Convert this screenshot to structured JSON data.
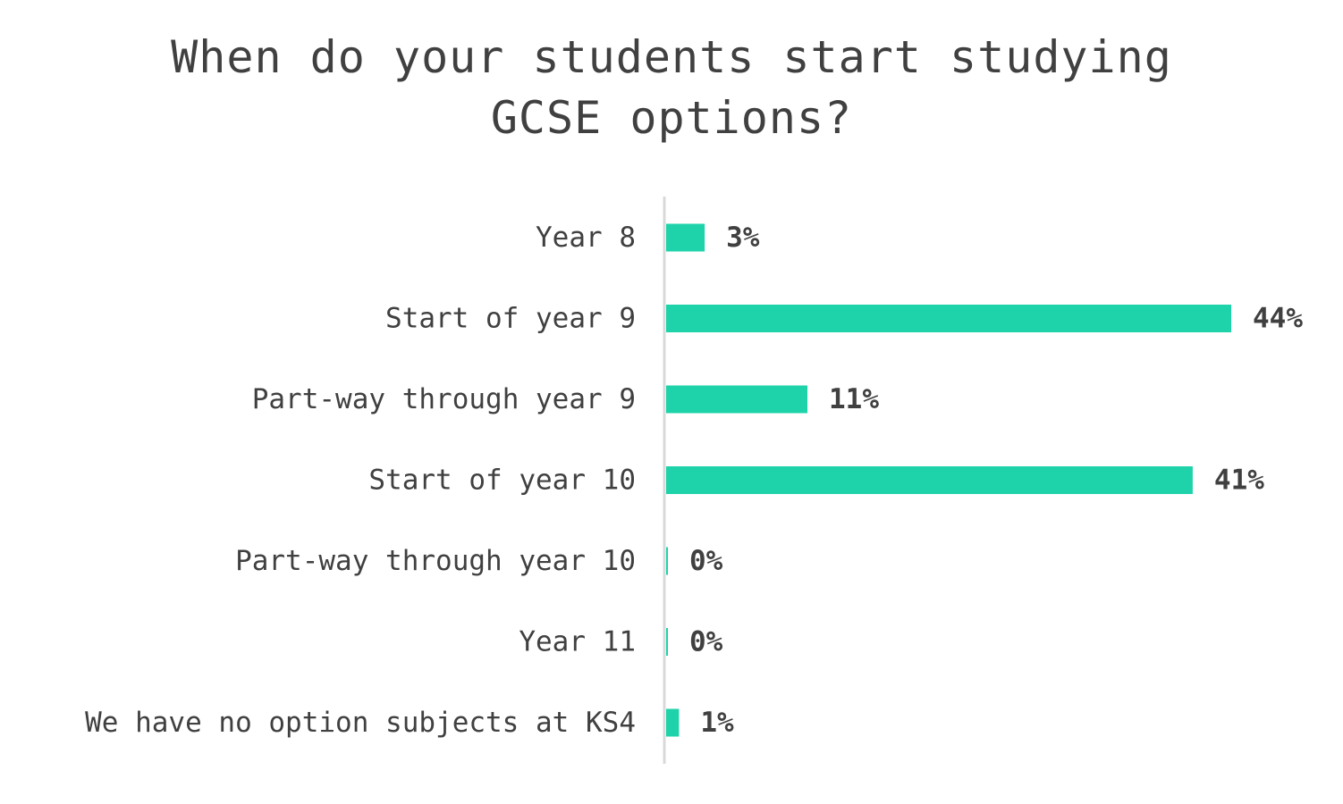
{
  "chart_data": {
    "type": "bar",
    "orientation": "horizontal",
    "title_lines": [
      "When do your students start studying",
      "GCSE options?"
    ],
    "categories": [
      "Year 8",
      "Start of year 9",
      "Part-way through year 9",
      "Start of year 10",
      "Part-way through year 10",
      "Year 11",
      "We have no option subjects at KS4"
    ],
    "values": [
      3,
      44,
      11,
      41,
      0,
      0,
      1
    ],
    "data_labels": [
      "3%",
      "44%",
      "11%",
      "41%",
      "0%",
      "0%",
      "1%"
    ],
    "value_unit": "%",
    "xlim": [
      0,
      44
    ],
    "grid": false,
    "legend": "none",
    "colors": {
      "bar": "#1ED3AA",
      "text": "#404040",
      "axis": "#D9D9D9"
    }
  }
}
